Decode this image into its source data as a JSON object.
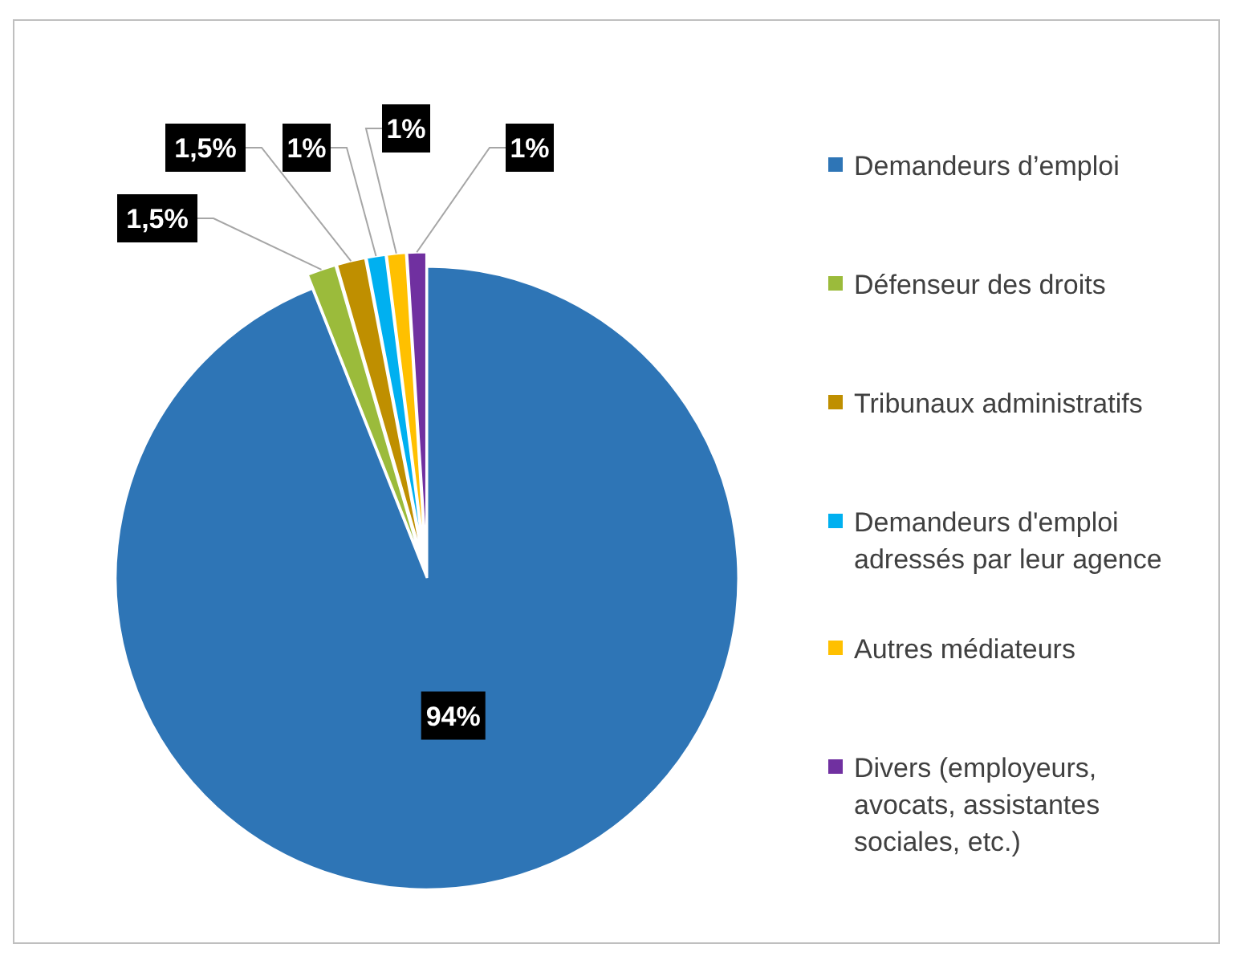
{
  "chart_data": {
    "type": "pie",
    "categories": [
      "Demandeurs d’emploi",
      "Défenseur des droits",
      "Tribunaux administratifs",
      "Demandeurs d'emploi adressés par leur agence",
      "Autres médiateurs",
      "Divers (employeurs, avocats, assistantes sociales, etc.)"
    ],
    "values": [
      94,
      1.5,
      1.5,
      1,
      1,
      1
    ],
    "value_labels": [
      "94%",
      "1,5%",
      "1,5%",
      "1%",
      "1%",
      "1%"
    ],
    "colors": [
      "#2e75b6",
      "#9bbb3b",
      "#bf8f00",
      "#00b0f0",
      "#ffc000",
      "#7030a0"
    ],
    "legend": "right"
  }
}
